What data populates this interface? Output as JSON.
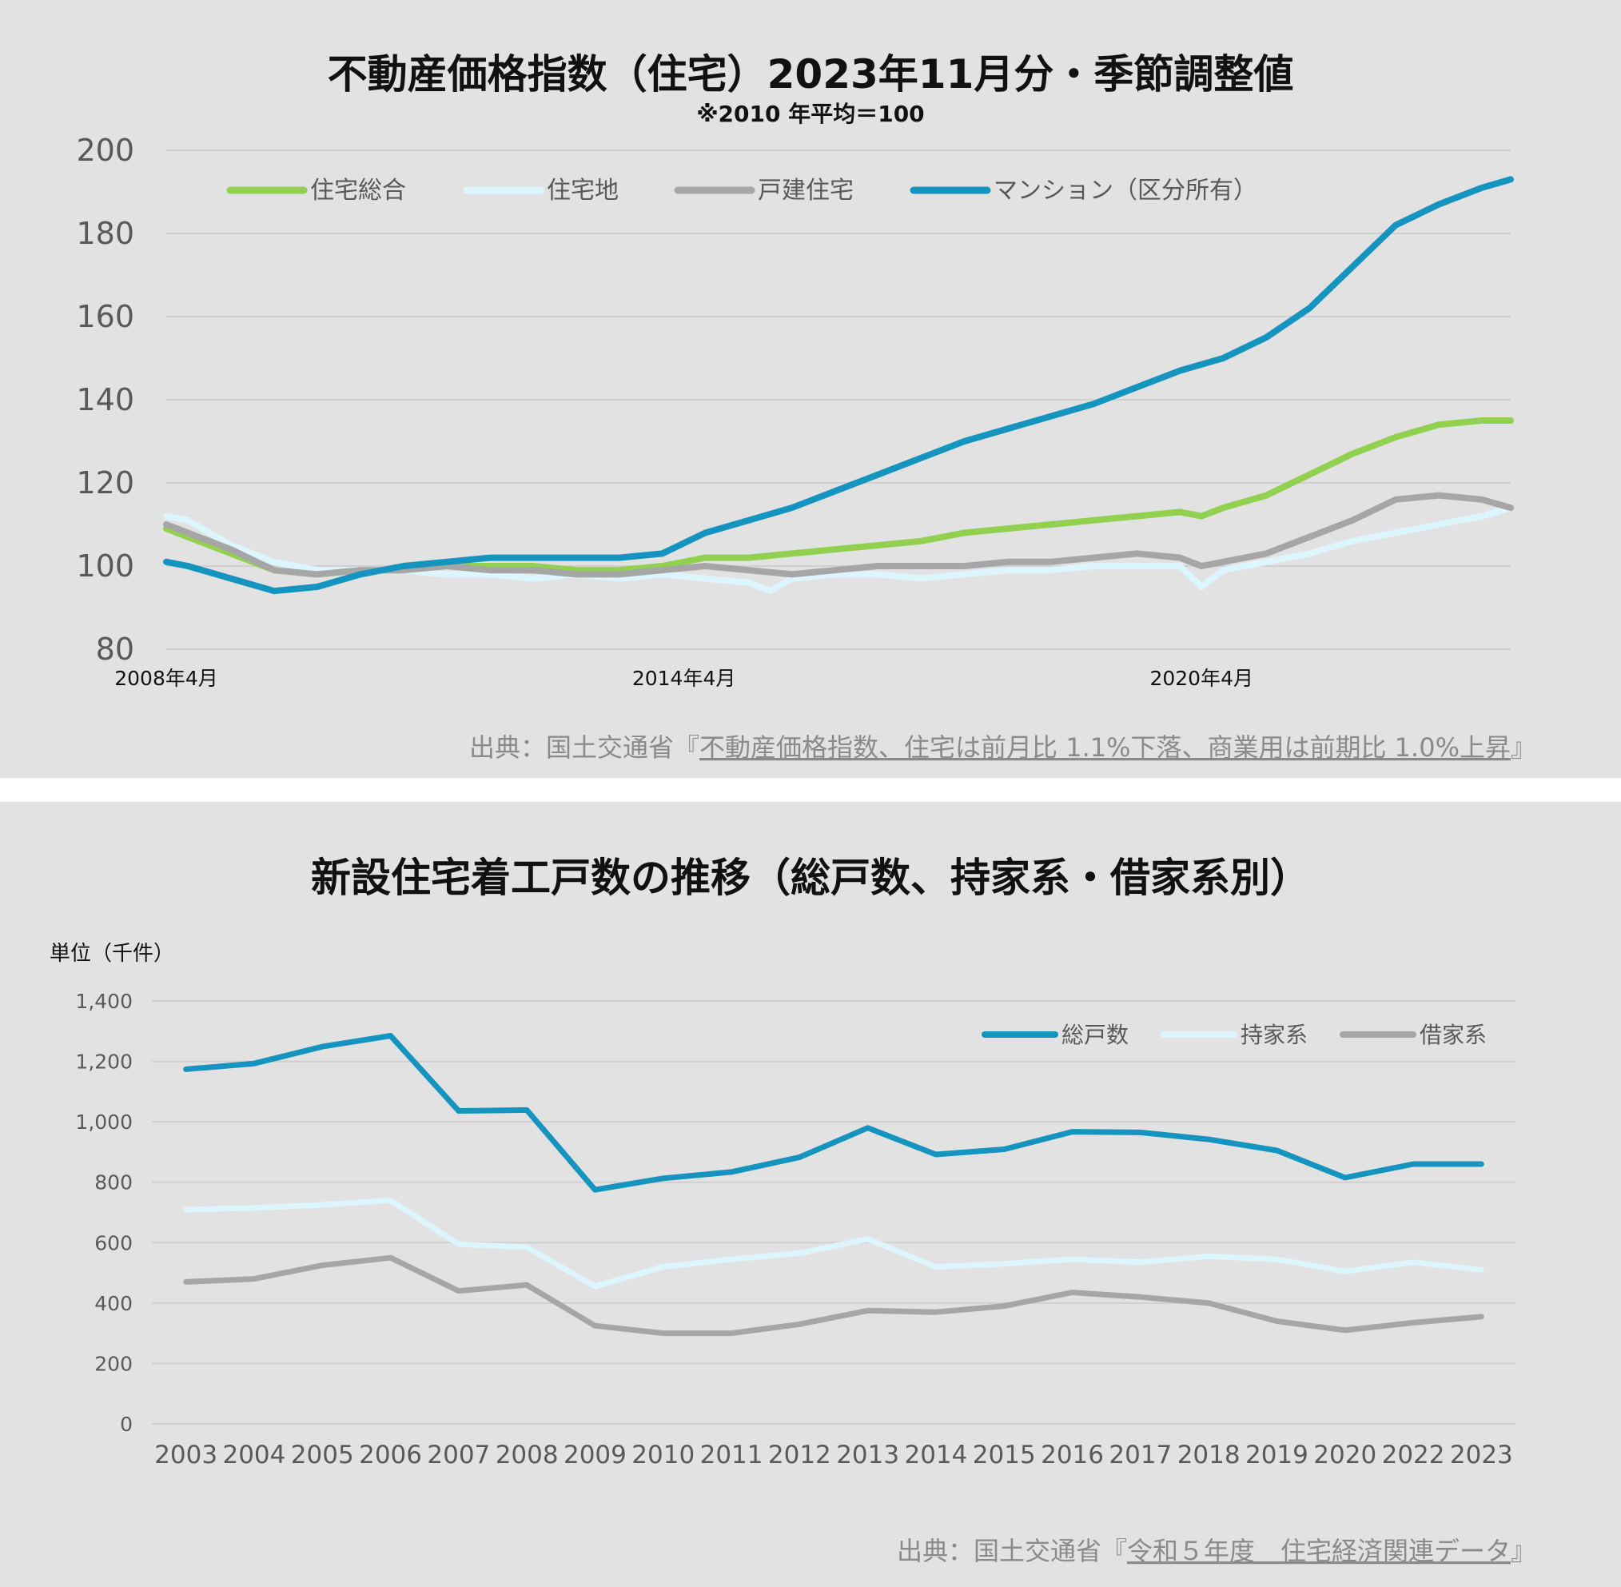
{
  "chart_data": [
    {
      "type": "line",
      "title": "不動産価格指数（住宅）2023年11月分・季節調整値",
      "subtitle": "※2010 年平均＝100",
      "ylim": [
        80,
        200
      ],
      "yticks": [
        80,
        100,
        120,
        140,
        160,
        180,
        200
      ],
      "x_range": [
        "2008-04",
        "2023-11"
      ],
      "xtick_labels": [
        "2008年4月",
        "2014年4月",
        "2020年4月"
      ],
      "legend_position": "top",
      "grid": true,
      "series": [
        {
          "name": "住宅総合",
          "color": "#92d050",
          "points": [
            [
              "2008-04",
              109
            ],
            [
              "2008-07",
              107
            ],
            [
              "2009-01",
              103
            ],
            [
              "2009-07",
              99
            ],
            [
              "2010-01",
              98
            ],
            [
              "2010-07",
              99
            ],
            [
              "2011-01",
              99
            ],
            [
              "2011-07",
              100
            ],
            [
              "2012-01",
              100
            ],
            [
              "2012-07",
              100
            ],
            [
              "2013-01",
              99
            ],
            [
              "2013-07",
              99
            ],
            [
              "2014-01",
              100
            ],
            [
              "2014-04",
              101
            ],
            [
              "2014-07",
              102
            ],
            [
              "2015-01",
              102
            ],
            [
              "2015-07",
              103
            ],
            [
              "2016-01",
              104
            ],
            [
              "2016-07",
              105
            ],
            [
              "2017-01",
              106
            ],
            [
              "2017-07",
              108
            ],
            [
              "2018-01",
              109
            ],
            [
              "2018-07",
              110
            ],
            [
              "2019-01",
              111
            ],
            [
              "2019-07",
              112
            ],
            [
              "2020-01",
              113
            ],
            [
              "2020-04",
              112
            ],
            [
              "2020-07",
              114
            ],
            [
              "2021-01",
              117
            ],
            [
              "2021-07",
              122
            ],
            [
              "2022-01",
              127
            ],
            [
              "2022-07",
              131
            ],
            [
              "2023-01",
              134
            ],
            [
              "2023-07",
              135
            ],
            [
              "2023-11",
              135
            ]
          ]
        },
        {
          "name": "住宅地",
          "color": "#ddf6fd",
          "points": [
            [
              "2008-04",
              112
            ],
            [
              "2008-07",
              111
            ],
            [
              "2009-01",
              105
            ],
            [
              "2009-07",
              101
            ],
            [
              "2010-01",
              99
            ],
            [
              "2010-07",
              99
            ],
            [
              "2011-01",
              99
            ],
            [
              "2011-07",
              98
            ],
            [
              "2012-01",
              98
            ],
            [
              "2012-07",
              97
            ],
            [
              "2013-01",
              98
            ],
            [
              "2013-07",
              97
            ],
            [
              "2014-01",
              98
            ],
            [
              "2014-07",
              97
            ],
            [
              "2015-01",
              96
            ],
            [
              "2015-04",
              94
            ],
            [
              "2015-07",
              97
            ],
            [
              "2016-01",
              98
            ],
            [
              "2016-07",
              98
            ],
            [
              "2017-01",
              97
            ],
            [
              "2017-07",
              98
            ],
            [
              "2018-01",
              99
            ],
            [
              "2018-07",
              99
            ],
            [
              "2019-01",
              100
            ],
            [
              "2019-07",
              100
            ],
            [
              "2020-01",
              100
            ],
            [
              "2020-04",
              95
            ],
            [
              "2020-07",
              99
            ],
            [
              "2021-01",
              101
            ],
            [
              "2021-07",
              103
            ],
            [
              "2022-01",
              106
            ],
            [
              "2022-07",
              108
            ],
            [
              "2023-01",
              110
            ],
            [
              "2023-07",
              112
            ],
            [
              "2023-11",
              114
            ]
          ]
        },
        {
          "name": "戸建住宅",
          "color": "#a6a6a6",
          "points": [
            [
              "2008-04",
              110
            ],
            [
              "2008-07",
              108
            ],
            [
              "2009-01",
              104
            ],
            [
              "2009-07",
              99
            ],
            [
              "2010-01",
              98
            ],
            [
              "2010-07",
              99
            ],
            [
              "2011-01",
              99
            ],
            [
              "2011-07",
              100
            ],
            [
              "2012-01",
              99
            ],
            [
              "2012-07",
              99
            ],
            [
              "2013-01",
              98
            ],
            [
              "2013-07",
              98
            ],
            [
              "2014-01",
              99
            ],
            [
              "2014-07",
              100
            ],
            [
              "2015-01",
              99
            ],
            [
              "2015-07",
              98
            ],
            [
              "2016-01",
              99
            ],
            [
              "2016-07",
              100
            ],
            [
              "2017-01",
              100
            ],
            [
              "2017-07",
              100
            ],
            [
              "2018-01",
              101
            ],
            [
              "2018-07",
              101
            ],
            [
              "2019-01",
              102
            ],
            [
              "2019-07",
              103
            ],
            [
              "2020-01",
              102
            ],
            [
              "2020-04",
              100
            ],
            [
              "2020-07",
              101
            ],
            [
              "2021-01",
              103
            ],
            [
              "2021-07",
              107
            ],
            [
              "2022-01",
              111
            ],
            [
              "2022-07",
              116
            ],
            [
              "2023-01",
              117
            ],
            [
              "2023-07",
              116
            ],
            [
              "2023-11",
              114
            ]
          ]
        },
        {
          "name": "マンション（区分所有）",
          "color": "#1594bf",
          "points": [
            [
              "2008-04",
              101
            ],
            [
              "2008-07",
              100
            ],
            [
              "2009-01",
              97
            ],
            [
              "2009-07",
              94
            ],
            [
              "2010-01",
              95
            ],
            [
              "2010-07",
              98
            ],
            [
              "2011-01",
              100
            ],
            [
              "2011-07",
              101
            ],
            [
              "2012-01",
              102
            ],
            [
              "2012-07",
              102
            ],
            [
              "2013-01",
              102
            ],
            [
              "2013-07",
              102
            ],
            [
              "2014-01",
              103
            ],
            [
              "2014-07",
              108
            ],
            [
              "2015-01",
              111
            ],
            [
              "2015-07",
              114
            ],
            [
              "2016-01",
              118
            ],
            [
              "2016-07",
              122
            ],
            [
              "2017-01",
              126
            ],
            [
              "2017-07",
              130
            ],
            [
              "2018-01",
              133
            ],
            [
              "2018-07",
              136
            ],
            [
              "2019-01",
              139
            ],
            [
              "2019-07",
              143
            ],
            [
              "2020-01",
              147
            ],
            [
              "2020-07",
              150
            ],
            [
              "2021-01",
              155
            ],
            [
              "2021-07",
              162
            ],
            [
              "2022-01",
              172
            ],
            [
              "2022-07",
              182
            ],
            [
              "2023-01",
              187
            ],
            [
              "2023-07",
              191
            ],
            [
              "2023-11",
              193
            ]
          ]
        }
      ],
      "source_prefix": "出典：国土交通省『",
      "source_link": "不動産価格指数、住宅は前月比 1.1%下落、商業用は前期比 1.0%上昇",
      "source_suffix": "』"
    },
    {
      "type": "line",
      "title": "新設住宅着工戸数の推移（総戸数、持家系・借家系別）",
      "unit_label": "単位（千件）",
      "ylim": [
        0,
        1400
      ],
      "yticks": [
        0,
        200,
        400,
        600,
        800,
        1000,
        1200,
        1400
      ],
      "ytick_labels": [
        "0",
        "200",
        "400",
        "600",
        "800",
        "1,000",
        "1,200",
        "1,400"
      ],
      "categories": [
        "2003",
        "2004",
        "2005",
        "2006",
        "2007",
        "2008",
        "2009",
        "2010",
        "2011",
        "2012",
        "2013",
        "2014",
        "2015",
        "2016",
        "2017",
        "2018",
        "2019",
        "2020",
        "2022",
        "2023"
      ],
      "legend_position": "top-right",
      "grid": true,
      "series": [
        {
          "name": "総戸数",
          "color": "#1594bf",
          "values": [
            1174,
            1193,
            1249,
            1285,
            1036,
            1039,
            775,
            813,
            834,
            883,
            980,
            892,
            909,
            967,
            965,
            942,
            905,
            815,
            860,
            860
          ]
        },
        {
          "name": "持家系",
          "color": "#ddf6fd",
          "values": [
            709,
            715,
            725,
            740,
            595,
            585,
            455,
            520,
            545,
            565,
            612,
            520,
            530,
            545,
            535,
            555,
            545,
            505,
            535,
            510
          ]
        },
        {
          "name": "借家系",
          "color": "#a6a6a6",
          "values": [
            470,
            480,
            525,
            550,
            440,
            460,
            325,
            300,
            300,
            330,
            375,
            370,
            390,
            435,
            420,
            400,
            340,
            310,
            335,
            355
          ]
        }
      ],
      "source_prefix": "出典：国土交通省『",
      "source_link": "令和５年度　住宅経済関連データ",
      "source_suffix": "』"
    }
  ]
}
